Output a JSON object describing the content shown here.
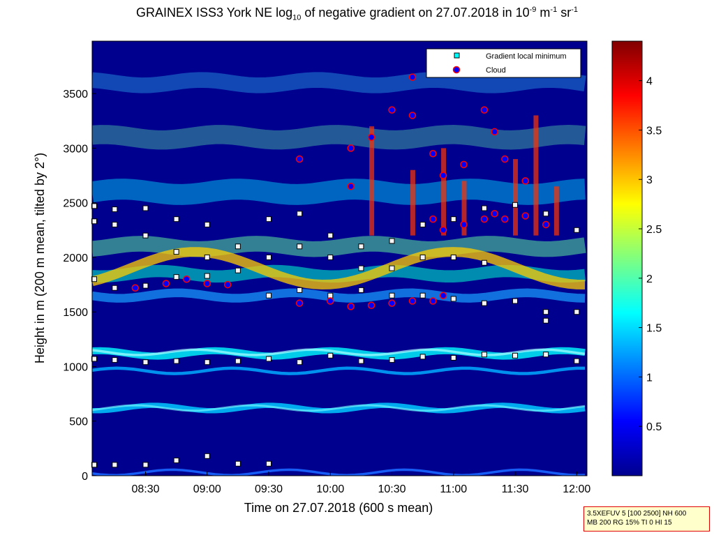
{
  "chart_data": {
    "type": "heatmap",
    "title": {
      "prefix": "GRAINEX ISS3 York NE log",
      "log_base": "10",
      "middle": " of negative gradient on 27.07.2018 in 10",
      "unit_exp1": "-9",
      "unit_m": " m",
      "unit_exp2": "-1",
      "unit_sr": " sr",
      "unit_exp3": "-1"
    },
    "xlabel": "Time on 27.07.2018 (600 s mean)",
    "ylabel": "Height in m (200 m mean, tilted by 2°)",
    "x_ticks": [
      "08:30",
      "09:00",
      "09:30",
      "10:00",
      "10:30",
      "11:00",
      "11:30",
      "12:00"
    ],
    "y_ticks": [
      "0",
      "500",
      "1000",
      "1500",
      "2000",
      "2500",
      "3000",
      "3500"
    ],
    "xlim": [
      "08:04",
      "12:05"
    ],
    "ylim": [
      0,
      3980
    ],
    "colorbar": {
      "ticks": [
        "0.5",
        "1",
        "1.5",
        "2",
        "2.5",
        "3",
        "3.5",
        "4"
      ],
      "range": [
        0,
        4.4
      ]
    },
    "legend": {
      "position": "top-right",
      "entries": [
        "Gradient local minimum",
        "Cloud"
      ]
    },
    "series": [
      {
        "name": "Gradient local minimum",
        "points": [
          {
            "time": "08:05",
            "heights": [
              100,
              1070,
              1800,
              2330,
              2470
            ]
          },
          {
            "time": "08:15",
            "heights": [
              100,
              1060,
              1720,
              2300,
              2440
            ]
          },
          {
            "time": "08:30",
            "heights": [
              100,
              1040,
              1740,
              2200,
              2450
            ]
          },
          {
            "time": "08:45",
            "heights": [
              140,
              1050,
              1820,
              2050,
              2350
            ]
          },
          {
            "time": "09:00",
            "heights": [
              180,
              1040,
              1830,
              2000,
              2300
            ]
          },
          {
            "time": "09:15",
            "heights": [
              110,
              1050,
              1880,
              2100
            ]
          },
          {
            "time": "09:30",
            "heights": [
              110,
              1070,
              1650,
              2000,
              2350
            ]
          },
          {
            "time": "09:45",
            "heights": [
              1040,
              1700,
              2100,
              2400
            ]
          },
          {
            "time": "10:00",
            "heights": [
              1100,
              1650,
              2000,
              2200
            ]
          },
          {
            "time": "10:15",
            "heights": [
              1050,
              1700,
              1900,
              2100
            ]
          },
          {
            "time": "10:30",
            "heights": [
              1060,
              1650,
              1900,
              2150
            ]
          },
          {
            "time": "10:45",
            "heights": [
              1090,
              1650,
              2000,
              2300
            ]
          },
          {
            "time": "11:00",
            "heights": [
              1080,
              1620,
              2000,
              2350
            ]
          },
          {
            "time": "11:15",
            "heights": [
              1110,
              1580,
              1950,
              2450
            ]
          },
          {
            "time": "11:30",
            "heights": [
              1100,
              1600,
              2480
            ]
          },
          {
            "time": "11:45",
            "heights": [
              1110,
              1420,
              1500,
              2400
            ]
          },
          {
            "time": "12:00",
            "heights": [
              1050,
              1500,
              2250
            ]
          }
        ]
      },
      {
        "name": "Cloud",
        "points": [
          {
            "time": "08:25",
            "heights": [
              1720
            ]
          },
          {
            "time": "08:40",
            "heights": [
              1760
            ]
          },
          {
            "time": "08:50",
            "heights": [
              1800
            ]
          },
          {
            "time": "09:00",
            "heights": [
              1760
            ]
          },
          {
            "time": "09:10",
            "heights": [
              1750
            ]
          },
          {
            "time": "09:45",
            "heights": [
              1580,
              2900
            ]
          },
          {
            "time": "10:00",
            "heights": [
              1600
            ]
          },
          {
            "time": "10:10",
            "heights": [
              1550,
              2650,
              3000
            ]
          },
          {
            "time": "10:20",
            "heights": [
              1560,
              3100
            ]
          },
          {
            "time": "10:30",
            "heights": [
              1580,
              3350
            ]
          },
          {
            "time": "10:40",
            "heights": [
              1600,
              3300,
              3650
            ]
          },
          {
            "time": "10:50",
            "heights": [
              1600,
              2350,
              2950
            ]
          },
          {
            "time": "10:55",
            "heights": [
              1650,
              2250,
              2750
            ]
          },
          {
            "time": "11:05",
            "heights": [
              2300,
              2850
            ]
          },
          {
            "time": "11:15",
            "heights": [
              2350,
              3350
            ]
          },
          {
            "time": "11:20",
            "heights": [
              2400,
              3150
            ]
          },
          {
            "time": "11:25",
            "heights": [
              2350,
              2900
            ]
          },
          {
            "time": "11:35",
            "heights": [
              2380,
              2700
            ]
          },
          {
            "time": "11:45",
            "heights": [
              2300
            ]
          }
        ]
      }
    ]
  },
  "footnote": {
    "line1": "3.5XEFUV 5 [100 2500] NH 600",
    "line2": "MB 200 RG 15% TI 0 HI 15"
  },
  "colors": {
    "background": "#00008f",
    "cloud_fill": "#0000ff",
    "cloud_edge": "#ff0000",
    "minimum_marker": "#00ffff"
  }
}
